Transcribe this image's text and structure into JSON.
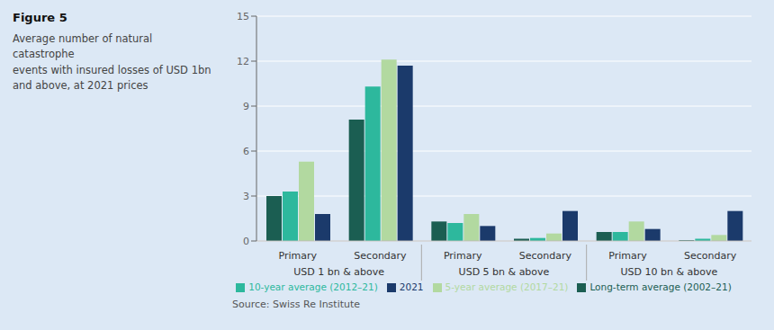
{
  "chart_data": {
    "type": "bar",
    "title": "Figure 5",
    "subtitle": "Average number of natural catastrophe\nevents with insured losses of USD 1bn\nand above, at 2021 prices",
    "categories": [
      "Primary",
      "Secondary",
      "Primary",
      "Secondary",
      "Primary",
      "Secondary"
    ],
    "category_groups": [
      "USD 1 bn & above",
      "USD 5 bn & above",
      "USD 10 bn & above"
    ],
    "series": [
      {
        "name": "Long-term average (2002–21)",
        "color": "#1b5e52",
        "values": [
          3.0,
          8.1,
          1.3,
          0.15,
          0.6,
          0.05
        ]
      },
      {
        "name": "10-year average (2012–21)",
        "color": "#2db89d",
        "values": [
          3.3,
          10.3,
          1.2,
          0.2,
          0.6,
          0.15
        ]
      },
      {
        "name": "5-year average (2017–21)",
        "color": "#b2d9a0",
        "values": [
          5.3,
          12.1,
          1.8,
          0.5,
          1.3,
          0.4
        ]
      },
      {
        "name": "2021",
        "color": "#1b3a6b",
        "values": [
          1.8,
          11.7,
          1.0,
          2.0,
          0.8,
          2.0
        ]
      }
    ],
    "ylim": [
      0,
      15
    ],
    "yticks": [
      0,
      3,
      6,
      9,
      12,
      15
    ],
    "grid": true,
    "legend": "bottom",
    "annotations": [
      "Source: Swiss Re Institute"
    ]
  }
}
